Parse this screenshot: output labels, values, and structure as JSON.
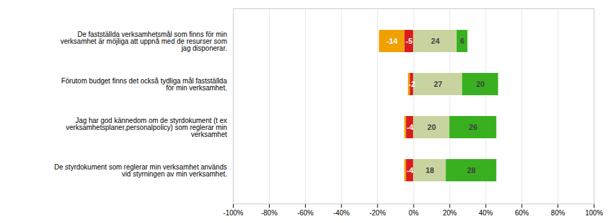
{
  "chart_data": {
    "type": "bar",
    "orientation": "horizontal",
    "stacked": true,
    "data_labels": true,
    "grid": true,
    "categories": [
      "De fastställda verksamhetsmål som finns för min\nverksamhet är möjliga att uppnå med de resurser som\njag disponerar.",
      "Förutom budget finns det också tydliga mål fastställda\nför min verksamhet.",
      "Jag har god kännedom om de styrdokument (t ex\nverksamhetsplaner,personalpolicy) som reglerar min\nverksamhet",
      "De styrdokument som reglerar min verksamhet används\nvid styrningen av min verksamhet."
    ],
    "series": [
      {
        "color": "#d91c1c",
        "values": [
          -5,
          -2,
          -4,
          -4
        ],
        "value_labels": [
          "-5",
          "-2",
          "-4",
          "-4"
        ]
      },
      {
        "color": "#f0a000",
        "values": [
          -14,
          -1,
          -1,
          -1
        ],
        "value_labels": [
          "-14",
          null,
          null,
          null
        ]
      },
      {
        "color": "#c8d4a0",
        "values": [
          24,
          27,
          20,
          18
        ],
        "value_labels": [
          "24",
          "27",
          "20",
          "18"
        ]
      },
      {
        "color": "#38b020",
        "values": [
          6,
          20,
          26,
          28
        ],
        "value_labels": [
          "6",
          "20",
          "26",
          "28"
        ]
      }
    ],
    "xlim": [
      -100,
      100
    ],
    "xticks": [
      {
        "value": -100,
        "label": "-100%"
      },
      {
        "value": -80,
        "label": "-80%"
      },
      {
        "value": -60,
        "label": "-60%"
      },
      {
        "value": -40,
        "label": "-40%"
      },
      {
        "value": -20,
        "label": "-20%"
      },
      {
        "value": 0,
        "label": "0%"
      },
      {
        "value": 20,
        "label": "20%"
      },
      {
        "value": 40,
        "label": "40%"
      },
      {
        "value": 60,
        "label": "60%"
      },
      {
        "value": 80,
        "label": "80%"
      },
      {
        "value": 100,
        "label": "100%"
      }
    ]
  }
}
